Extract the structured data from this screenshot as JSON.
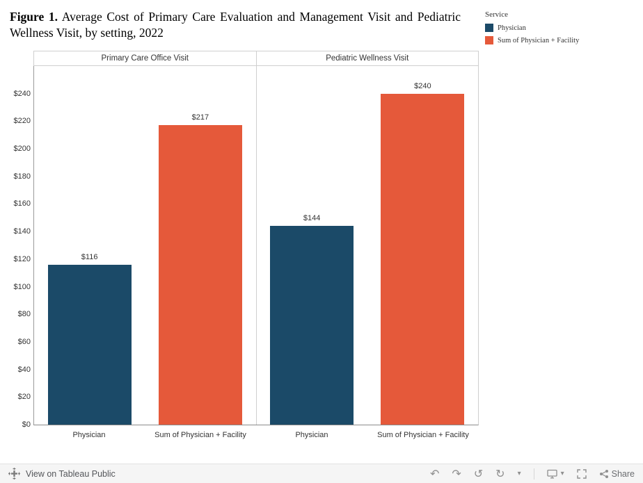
{
  "title": {
    "prefix": "Figure 1.",
    "rest": " Average Cost of Primary Care Evaluation and Management Visit and Pediatric Wellness Visit, by setting, 2022"
  },
  "legend": {
    "title": "Service"
  },
  "chart_data": {
    "type": "bar",
    "title": "Figure 1. Average Cost of Primary Care Evaluation and Management Visit and Pediatric Wellness Visit, by setting, 2022",
    "legend_title": "Service",
    "legend_position": "top-right",
    "grid": false,
    "series": [
      {
        "name": "Physician",
        "color": "#1b4a68"
      },
      {
        "name": "Sum of Physician + Facility",
        "color": "#e5593a"
      }
    ],
    "panels": [
      {
        "title": "Primary Care Office Visit",
        "bars": [
          {
            "category": "Physician",
            "series": "Physician",
            "value": 116,
            "label": "$116"
          },
          {
            "category": "Sum of Physician + Facility",
            "series": "Sum of Physician + Facility",
            "value": 217,
            "label": "$217"
          }
        ]
      },
      {
        "title": "Pediatric Wellness Visit",
        "bars": [
          {
            "category": "Physician",
            "series": "Physician",
            "value": 144,
            "label": "$144"
          },
          {
            "category": "Sum of Physician + Facility",
            "series": "Sum of Physician + Facility",
            "value": 240,
            "label": "$240"
          }
        ]
      }
    ],
    "y_axis": {
      "min": 0,
      "tick_max": 240,
      "step": 20,
      "scale_max": 260,
      "tick_prefix": "$"
    }
  },
  "footer": {
    "brand_label": "View on Tableau Public",
    "share_label": "Share",
    "glyphs": {
      "undo": "↶",
      "redo": "↷",
      "reset": "↺",
      "refresh": "↻",
      "caret": "▾"
    }
  }
}
